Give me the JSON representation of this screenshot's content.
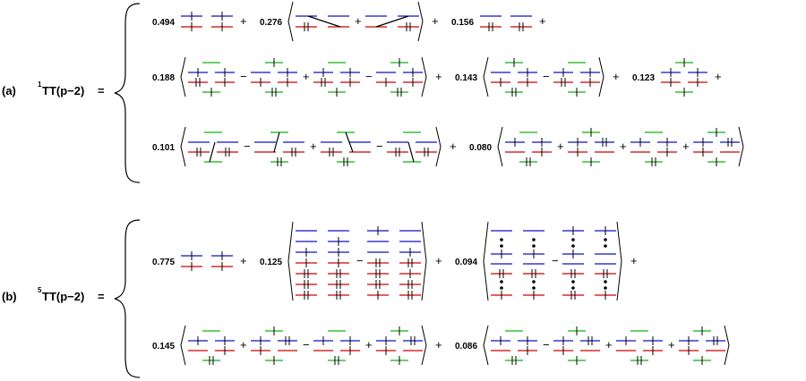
{
  "colors": {
    "blue": "#1010c8",
    "red": "#d00000",
    "green": "#10b010",
    "black": "#000000"
  },
  "equations": [
    {
      "prefix": "(a)",
      "superscript": "1",
      "name": "TT(p−2)",
      "equals": "=",
      "rows": [
        [
          {
            "coef": "0.494",
            "terms": [
              {
                "sign": "",
                "type": "a1"
              }
            ],
            "tail": "+"
          },
          {
            "coef": "0.276",
            "terms": [
              {
                "sign": "",
                "type": "a2a"
              },
              {
                "sign": "+",
                "type": "a2b"
              }
            ],
            "tail": "+"
          },
          {
            "coef": "0.156",
            "terms": [
              {
                "sign": "",
                "type": "a3"
              }
            ],
            "tail": "+"
          }
        ],
        [
          {
            "coef": "0.188",
            "terms": [
              {
                "sign": "",
                "type": "b1"
              },
              {
                "sign": "−",
                "type": "b2"
              },
              {
                "sign": "+",
                "type": "b1"
              },
              {
                "sign": "−",
                "type": "b2"
              }
            ],
            "tail": "+"
          },
          {
            "coef": "0.143",
            "terms": [
              {
                "sign": "",
                "type": "b2"
              },
              {
                "sign": "−",
                "type": "b1"
              }
            ],
            "tail": "+"
          },
          {
            "coef": "0.123",
            "terms": [
              {
                "sign": "",
                "type": "b3"
              }
            ],
            "tail": "+"
          }
        ],
        [
          {
            "coef": "0.101",
            "terms": [
              {
                "sign": "",
                "type": "c1"
              },
              {
                "sign": "−",
                "type": "c2"
              },
              {
                "sign": "+",
                "type": "c3"
              },
              {
                "sign": "−",
                "type": "c4"
              }
            ],
            "tail": "+"
          },
          {
            "coef": "0.080",
            "terms": [
              {
                "sign": "",
                "type": "d1"
              },
              {
                "sign": "+",
                "type": "d2"
              },
              {
                "sign": "+",
                "type": "d1"
              },
              {
                "sign": "+",
                "type": "d2"
              }
            ],
            "tail": ""
          }
        ]
      ]
    },
    {
      "prefix": "(b)",
      "superscript": "5",
      "name": "TT(p−2)",
      "equals": "=",
      "rows": [
        [
          {
            "coef": "0.775",
            "terms": [
              {
                "sign": "",
                "type": "a1"
              }
            ],
            "tail": "+"
          },
          {
            "coef": "0.125",
            "terms": [
              {
                "sign": "",
                "type": "t1"
              },
              {
                "sign": "−",
                "type": "t2"
              }
            ],
            "tail": "+"
          },
          {
            "coef": "0.094",
            "terms": [
              {
                "sign": "",
                "type": "t3"
              },
              {
                "sign": "−",
                "type": "t4"
              }
            ],
            "tail": "+"
          }
        ],
        [
          {
            "coef": "0.145",
            "terms": [
              {
                "sign": "",
                "type": "d1"
              },
              {
                "sign": "+",
                "type": "d2"
              },
              {
                "sign": "−",
                "type": "d1"
              },
              {
                "sign": "+",
                "type": "d2"
              }
            ],
            "tail": "+"
          },
          {
            "coef": "0.086",
            "terms": [
              {
                "sign": "",
                "type": "d1"
              },
              {
                "sign": "−",
                "type": "d2"
              },
              {
                "sign": "+",
                "type": "d1"
              },
              {
                "sign": "+",
                "type": "d2"
              }
            ],
            "tail": ""
          }
        ]
      ]
    }
  ]
}
